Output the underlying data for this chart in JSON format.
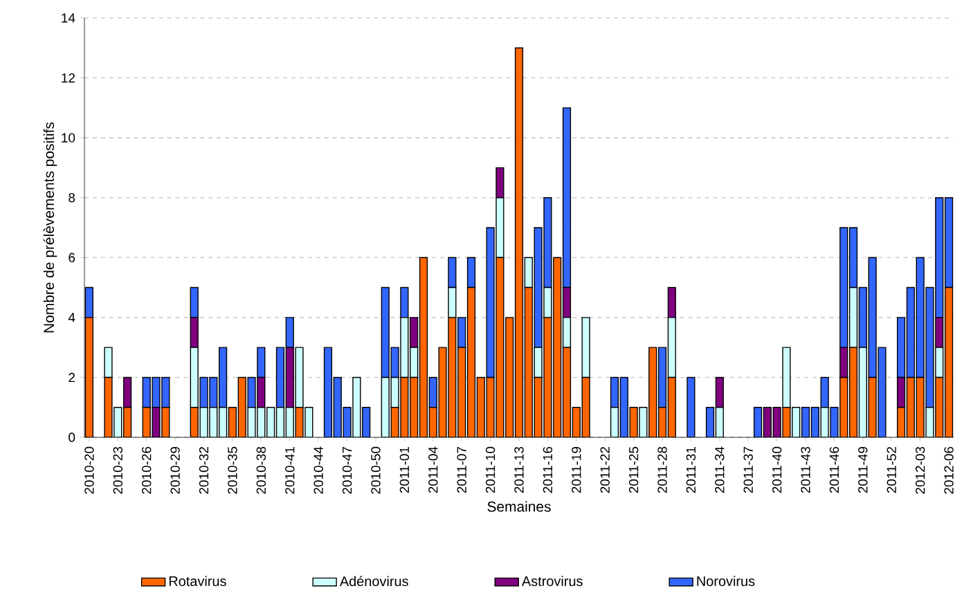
{
  "chart_data": {
    "type": "bar",
    "stacked": true,
    "xlabel": "Semaines",
    "ylabel": "Nombre de prélèvements positifs",
    "categories": [
      "2010-20",
      null,
      null,
      "2010-23",
      null,
      null,
      "2010-26",
      null,
      null,
      "2010-29",
      null,
      null,
      "2010-32",
      null,
      null,
      "2010-35",
      null,
      null,
      "2010-38",
      null,
      null,
      "2010-41",
      null,
      null,
      "2010-44",
      null,
      null,
      "2010-47",
      null,
      null,
      "2010-50",
      null,
      null,
      "2011-01",
      null,
      null,
      "2011-04",
      null,
      null,
      "2011-07",
      null,
      null,
      "2011-10",
      null,
      null,
      "2011-13",
      null,
      null,
      "2011-16",
      null,
      null,
      "2011-19",
      null,
      null,
      "2011-22",
      null,
      null,
      "2011-25",
      null,
      null,
      "2011-28",
      null,
      null,
      "2011-31",
      null,
      null,
      "2011-34",
      null,
      null,
      "2011-37",
      null,
      null,
      "2011-40",
      null,
      null,
      "2011-43",
      null,
      null,
      "2011-46",
      null,
      null,
      "2011-49",
      null,
      null,
      "2011-52",
      null,
      null,
      "2012-03",
      null,
      null,
      "2012-06"
    ],
    "series": [
      {
        "name": "Rotavirus",
        "color": "#ff6600",
        "values": [
          4,
          0,
          2,
          0,
          1,
          0,
          1,
          0,
          1,
          0,
          0,
          1,
          0,
          0,
          0,
          1,
          2,
          0,
          0,
          0,
          0,
          0,
          1,
          0,
          0,
          0,
          0,
          0,
          0,
          0,
          0,
          0,
          1,
          2,
          2,
          6,
          1,
          3,
          4,
          3,
          5,
          2,
          2,
          6,
          4,
          13,
          5,
          2,
          4,
          6,
          3,
          1,
          2,
          0,
          0,
          0,
          0,
          1,
          0,
          3,
          1,
          2,
          0,
          0,
          0,
          0,
          0,
          0,
          0,
          0,
          0,
          0,
          0,
          1,
          0,
          0,
          0,
          0,
          0,
          2,
          3,
          0,
          2,
          0,
          0,
          1,
          2,
          2,
          0,
          2,
          5
        ]
      },
      {
        "name": "Adénovirus",
        "color": "#ccffff",
        "values": [
          0,
          0,
          1,
          1,
          0,
          0,
          0,
          0,
          0,
          0,
          0,
          2,
          1,
          1,
          1,
          0,
          0,
          1,
          1,
          1,
          1,
          1,
          2,
          1,
          0,
          0,
          0,
          0,
          2,
          0,
          0,
          2,
          1,
          2,
          1,
          0,
          0,
          0,
          1,
          0,
          0,
          0,
          0,
          2,
          0,
          0,
          1,
          1,
          1,
          0,
          1,
          0,
          2,
          0,
          0,
          1,
          0,
          0,
          1,
          0,
          0,
          2,
          0,
          0,
          0,
          0,
          1,
          0,
          0,
          0,
          0,
          0,
          0,
          2,
          1,
          0,
          0,
          1,
          0,
          0,
          2,
          3,
          0,
          0,
          0,
          0,
          0,
          0,
          1,
          1,
          0
        ]
      },
      {
        "name": "Astrovirus",
        "color": "#800080",
        "values": [
          0,
          0,
          0,
          0,
          1,
          0,
          0,
          1,
          0,
          0,
          0,
          1,
          0,
          0,
          0,
          0,
          0,
          0,
          1,
          0,
          0,
          2,
          0,
          0,
          0,
          0,
          0,
          0,
          0,
          0,
          0,
          0,
          0,
          0,
          1,
          0,
          0,
          0,
          0,
          0,
          0,
          0,
          0,
          1,
          0,
          0,
          0,
          0,
          0,
          0,
          1,
          0,
          0,
          0,
          0,
          0,
          0,
          0,
          0,
          0,
          0,
          1,
          0,
          0,
          0,
          0,
          1,
          0,
          0,
          0,
          0,
          1,
          1,
          0,
          0,
          0,
          0,
          0,
          0,
          1,
          0,
          0,
          0,
          0,
          0,
          1,
          0,
          0,
          0,
          1,
          0
        ]
      },
      {
        "name": "Norovirus",
        "color": "#3366ff",
        "values": [
          1,
          0,
          0,
          0,
          0,
          0,
          1,
          1,
          1,
          0,
          0,
          1,
          1,
          1,
          2,
          0,
          0,
          1,
          1,
          0,
          2,
          1,
          0,
          0,
          0,
          3,
          2,
          1,
          0,
          1,
          0,
          3,
          1,
          1,
          0,
          0,
          1,
          0,
          1,
          1,
          1,
          0,
          5,
          0,
          0,
          0,
          0,
          4,
          3,
          0,
          6,
          0,
          0,
          0,
          0,
          1,
          2,
          0,
          0,
          0,
          2,
          0,
          0,
          2,
          0,
          1,
          0,
          0,
          0,
          0,
          1,
          0,
          0,
          0,
          0,
          1,
          1,
          1,
          1,
          4,
          2,
          2,
          4,
          3,
          0,
          2,
          3,
          4,
          4,
          4,
          3
        ]
      }
    ],
    "ylim": [
      0,
      14
    ],
    "yticks": [
      0,
      2,
      4,
      6,
      8,
      10,
      12,
      14
    ],
    "grid": "y",
    "legend": "bottom"
  }
}
